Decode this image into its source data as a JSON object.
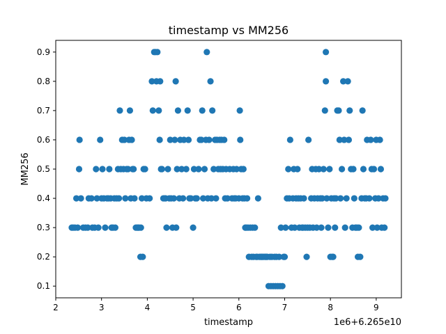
{
  "chart_data": {
    "type": "scatter",
    "title": "timestamp vs MM256",
    "xlabel": "timestamp",
    "ylabel": "MM256",
    "offset_label": "1e6+6.265e10",
    "xlim": [
      2.0,
      9.55
    ],
    "ylim": [
      0.06,
      0.94
    ],
    "x_ticks": [
      2,
      3,
      4,
      5,
      6,
      7,
      8,
      9
    ],
    "y_ticks": [
      0.1,
      0.2,
      0.3,
      0.4,
      0.5,
      0.6,
      0.7,
      0.8,
      0.9
    ],
    "x_tick_labels": [
      "2",
      "3",
      "4",
      "5",
      "6",
      "7",
      "8",
      "9"
    ],
    "y_tick_labels": [
      "0.1",
      "0.2",
      "0.3",
      "0.4",
      "0.5",
      "0.6",
      "0.7",
      "0.8",
      "0.9"
    ],
    "marker_color": "#1f77b4",
    "grid": false,
    "points": [
      [
        2.35,
        0.3
      ],
      [
        2.38,
        0.3
      ],
      [
        2.42,
        0.3
      ],
      [
        2.45,
        0.4
      ],
      [
        2.48,
        0.3
      ],
      [
        2.51,
        0.5
      ],
      [
        2.52,
        0.6
      ],
      [
        2.55,
        0.4
      ],
      [
        2.6,
        0.3
      ],
      [
        2.65,
        0.3
      ],
      [
        2.7,
        0.3
      ],
      [
        2.72,
        0.4
      ],
      [
        2.78,
        0.4
      ],
      [
        2.8,
        0.3
      ],
      [
        2.85,
        0.3
      ],
      [
        2.88,
        0.5
      ],
      [
        2.9,
        0.4
      ],
      [
        2.93,
        0.3
      ],
      [
        2.97,
        0.6
      ],
      [
        3.0,
        0.4
      ],
      [
        3.02,
        0.5
      ],
      [
        3.05,
        0.4
      ],
      [
        3.08,
        0.3
      ],
      [
        3.12,
        0.4
      ],
      [
        3.15,
        0.4
      ],
      [
        3.17,
        0.5
      ],
      [
        3.2,
        0.4
      ],
      [
        3.22,
        0.3
      ],
      [
        3.25,
        0.3
      ],
      [
        3.28,
        0.4
      ],
      [
        3.3,
        0.3
      ],
      [
        3.33,
        0.4
      ],
      [
        3.36,
        0.5
      ],
      [
        3.38,
        0.4
      ],
      [
        3.4,
        0.7
      ],
      [
        3.42,
        0.5
      ],
      [
        3.45,
        0.6
      ],
      [
        3.48,
        0.5
      ],
      [
        3.5,
        0.6
      ],
      [
        3.52,
        0.4
      ],
      [
        3.55,
        0.5
      ],
      [
        3.58,
        0.5
      ],
      [
        3.6,
        0.6
      ],
      [
        3.62,
        0.7
      ],
      [
        3.64,
        0.4
      ],
      [
        3.66,
        0.6
      ],
      [
        3.68,
        0.5
      ],
      [
        3.7,
        0.5
      ],
      [
        3.72,
        0.4
      ],
      [
        3.75,
        0.3
      ],
      [
        3.78,
        0.3
      ],
      [
        3.8,
        0.3
      ],
      [
        3.82,
        0.3
      ],
      [
        3.85,
        0.2
      ],
      [
        3.86,
        0.3
      ],
      [
        3.88,
        0.4
      ],
      [
        3.9,
        0.2
      ],
      [
        3.92,
        0.5
      ],
      [
        3.95,
        0.5
      ],
      [
        3.98,
        0.4
      ],
      [
        4.05,
        0.4
      ],
      [
        4.1,
        0.8
      ],
      [
        4.12,
        0.7
      ],
      [
        4.15,
        0.9
      ],
      [
        4.18,
        0.9
      ],
      [
        4.2,
        0.8
      ],
      [
        4.22,
        0.9
      ],
      [
        4.25,
        0.7
      ],
      [
        4.27,
        0.6
      ],
      [
        4.28,
        0.8
      ],
      [
        4.3,
        0.5
      ],
      [
        4.32,
        0.5
      ],
      [
        4.35,
        0.4
      ],
      [
        4.38,
        0.4
      ],
      [
        4.4,
        0.4
      ],
      [
        4.42,
        0.3
      ],
      [
        4.45,
        0.5
      ],
      [
        4.48,
        0.4
      ],
      [
        4.5,
        0.6
      ],
      [
        4.52,
        0.4
      ],
      [
        4.55,
        0.3
      ],
      [
        4.58,
        0.4
      ],
      [
        4.6,
        0.6
      ],
      [
        4.62,
        0.8
      ],
      [
        4.63,
        0.3
      ],
      [
        4.65,
        0.5
      ],
      [
        4.67,
        0.7
      ],
      [
        4.7,
        0.4
      ],
      [
        4.72,
        0.6
      ],
      [
        4.75,
        0.5
      ],
      [
        4.78,
        0.4
      ],
      [
        4.8,
        0.6
      ],
      [
        4.85,
        0.5
      ],
      [
        4.88,
        0.7
      ],
      [
        4.9,
        0.6
      ],
      [
        4.92,
        0.4
      ],
      [
        4.95,
        0.4
      ],
      [
        5.0,
        0.3
      ],
      [
        5.02,
        0.5
      ],
      [
        5.05,
        0.4
      ],
      [
        5.08,
        0.4
      ],
      [
        5.12,
        0.5
      ],
      [
        5.15,
        0.6
      ],
      [
        5.18,
        0.6
      ],
      [
        5.2,
        0.7
      ],
      [
        5.22,
        0.4
      ],
      [
        5.25,
        0.5
      ],
      [
        5.28,
        0.6
      ],
      [
        5.3,
        0.9
      ],
      [
        5.32,
        0.4
      ],
      [
        5.35,
        0.6
      ],
      [
        5.38,
        0.8
      ],
      [
        5.4,
        0.4
      ],
      [
        5.42,
        0.7
      ],
      [
        5.45,
        0.5
      ],
      [
        5.48,
        0.6
      ],
      [
        5.5,
        0.4
      ],
      [
        5.52,
        0.6
      ],
      [
        5.55,
        0.5
      ],
      [
        5.58,
        0.6
      ],
      [
        5.6,
        0.5
      ],
      [
        5.62,
        0.6
      ],
      [
        5.65,
        0.5
      ],
      [
        5.68,
        0.6
      ],
      [
        5.7,
        0.4
      ],
      [
        5.72,
        0.5
      ],
      [
        5.75,
        0.4
      ],
      [
        5.8,
        0.5
      ],
      [
        5.85,
        0.4
      ],
      [
        5.88,
        0.5
      ],
      [
        5.9,
        0.4
      ],
      [
        5.93,
        0.4
      ],
      [
        5.95,
        0.5
      ],
      [
        6.0,
        0.4
      ],
      [
        6.02,
        0.7
      ],
      [
        6.03,
        0.6
      ],
      [
        6.05,
        0.5
      ],
      [
        6.08,
        0.4
      ],
      [
        6.1,
        0.5
      ],
      [
        6.12,
        0.4
      ],
      [
        6.14,
        0.3
      ],
      [
        6.16,
        0.3
      ],
      [
        6.18,
        0.4
      ],
      [
        6.2,
        0.3
      ],
      [
        6.22,
        0.2
      ],
      [
        6.25,
        0.3
      ],
      [
        6.28,
        0.2
      ],
      [
        6.3,
        0.3
      ],
      [
        6.32,
        0.2
      ],
      [
        6.35,
        0.3
      ],
      [
        6.38,
        0.2
      ],
      [
        6.4,
        0.2
      ],
      [
        6.42,
        0.4
      ],
      [
        6.45,
        0.2
      ],
      [
        6.48,
        0.2
      ],
      [
        6.5,
        0.2
      ],
      [
        6.52,
        0.2
      ],
      [
        6.55,
        0.2
      ],
      [
        6.58,
        0.2
      ],
      [
        6.6,
        0.2
      ],
      [
        6.62,
        0.2
      ],
      [
        6.65,
        0.1
      ],
      [
        6.68,
        0.2
      ],
      [
        6.7,
        0.1
      ],
      [
        6.72,
        0.2
      ],
      [
        6.75,
        0.1
      ],
      [
        6.78,
        0.2
      ],
      [
        6.8,
        0.1
      ],
      [
        6.82,
        0.2
      ],
      [
        6.85,
        0.1
      ],
      [
        6.88,
        0.2
      ],
      [
        6.9,
        0.1
      ],
      [
        6.92,
        0.3
      ],
      [
        6.95,
        0.1
      ],
      [
        6.98,
        0.2
      ],
      [
        7.0,
        0.2
      ],
      [
        7.02,
        0.3
      ],
      [
        7.05,
        0.4
      ],
      [
        7.08,
        0.5
      ],
      [
        7.1,
        0.4
      ],
      [
        7.12,
        0.6
      ],
      [
        7.15,
        0.3
      ],
      [
        7.18,
        0.4
      ],
      [
        7.2,
        0.5
      ],
      [
        7.22,
        0.3
      ],
      [
        7.25,
        0.4
      ],
      [
        7.28,
        0.5
      ],
      [
        7.3,
        0.4
      ],
      [
        7.32,
        0.3
      ],
      [
        7.35,
        0.4
      ],
      [
        7.38,
        0.3
      ],
      [
        7.4,
        0.3
      ],
      [
        7.42,
        0.4
      ],
      [
        7.45,
        0.3
      ],
      [
        7.48,
        0.2
      ],
      [
        7.5,
        0.3
      ],
      [
        7.52,
        0.6
      ],
      [
        7.55,
        0.3
      ],
      [
        7.58,
        0.4
      ],
      [
        7.6,
        0.5
      ],
      [
        7.62,
        0.3
      ],
      [
        7.65,
        0.4
      ],
      [
        7.68,
        0.5
      ],
      [
        7.7,
        0.3
      ],
      [
        7.72,
        0.4
      ],
      [
        7.75,
        0.5
      ],
      [
        7.78,
        0.4
      ],
      [
        7.8,
        0.3
      ],
      [
        7.82,
        0.4
      ],
      [
        7.85,
        0.5
      ],
      [
        7.88,
        0.7
      ],
      [
        7.9,
        0.9
      ],
      [
        7.9,
        0.8
      ],
      [
        7.92,
        0.4
      ],
      [
        7.95,
        0.3
      ],
      [
        7.98,
        0.5
      ],
      [
        8.0,
        0.2
      ],
      [
        8.02,
        0.4
      ],
      [
        8.04,
        0.2
      ],
      [
        8.06,
        0.2
      ],
      [
        8.08,
        0.4
      ],
      [
        8.1,
        0.3
      ],
      [
        8.12,
        0.4
      ],
      [
        8.15,
        0.7
      ],
      [
        8.18,
        0.7
      ],
      [
        8.2,
        0.6
      ],
      [
        8.22,
        0.4
      ],
      [
        8.25,
        0.5
      ],
      [
        8.28,
        0.8
      ],
      [
        8.3,
        0.6
      ],
      [
        8.32,
        0.3
      ],
      [
        8.35,
        0.4
      ],
      [
        8.38,
        0.8
      ],
      [
        8.4,
        0.6
      ],
      [
        8.42,
        0.7
      ],
      [
        8.45,
        0.5
      ],
      [
        8.48,
        0.3
      ],
      [
        8.5,
        0.5
      ],
      [
        8.52,
        0.4
      ],
      [
        8.55,
        0.3
      ],
      [
        8.58,
        0.3
      ],
      [
        8.6,
        0.2
      ],
      [
        8.62,
        0.3
      ],
      [
        8.65,
        0.2
      ],
      [
        8.68,
        0.4
      ],
      [
        8.7,
        0.7
      ],
      [
        8.72,
        0.5
      ],
      [
        8.75,
        0.4
      ],
      [
        8.78,
        0.4
      ],
      [
        8.8,
        0.6
      ],
      [
        8.85,
        0.4
      ],
      [
        8.88,
        0.6
      ],
      [
        8.9,
        0.5
      ],
      [
        8.92,
        0.3
      ],
      [
        8.95,
        0.5
      ],
      [
        8.98,
        0.4
      ],
      [
        9.0,
        0.6
      ],
      [
        9.02,
        0.3
      ],
      [
        9.05,
        0.4
      ],
      [
        9.08,
        0.6
      ],
      [
        9.1,
        0.5
      ],
      [
        9.12,
        0.3
      ],
      [
        9.15,
        0.4
      ],
      [
        9.18,
        0.3
      ],
      [
        9.2,
        0.4
      ]
    ]
  }
}
